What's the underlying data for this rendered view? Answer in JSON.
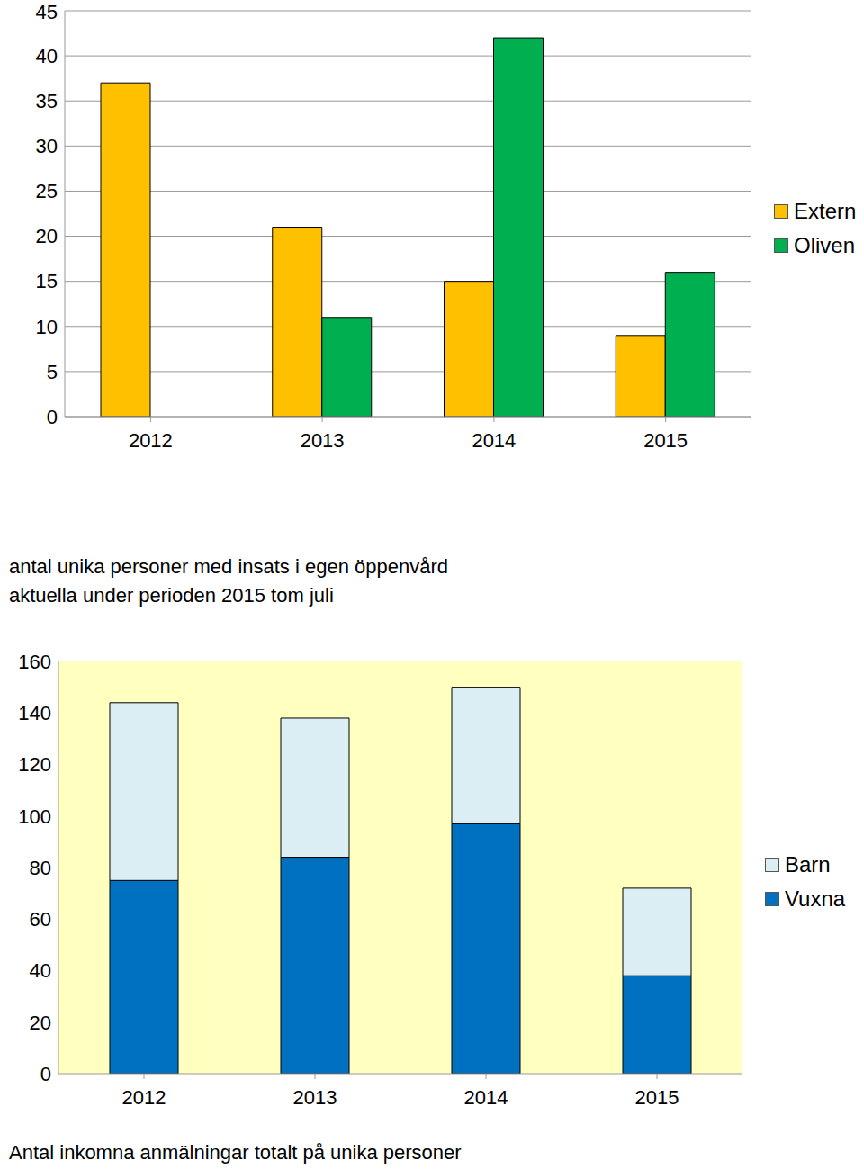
{
  "chart_data": [
    {
      "type": "bar",
      "categories": [
        "2012",
        "2013",
        "2014",
        "2015"
      ],
      "series": [
        {
          "name": "Extern",
          "color": "#FFC000",
          "values": [
            37,
            21,
            15,
            9
          ]
        },
        {
          "name": "Oliven",
          "color": "#00B050",
          "values": [
            null,
            11,
            42,
            16
          ]
        }
      ],
      "ylim": [
        0,
        45
      ],
      "yticks": [
        0,
        5,
        10,
        15,
        20,
        25,
        30,
        35,
        40,
        45
      ],
      "grid": true,
      "legend": "right"
    },
    {
      "type": "bar",
      "title": "antal unika personer med insats i egen öppenvård",
      "subtitle": "aktuella under perioden 2015 tom juli",
      "annotations": [
        "Antal inkomna anmälningar totalt på unika personer"
      ],
      "categories": [
        "2012",
        "2013",
        "2014",
        "2015"
      ],
      "series": [
        {
          "name": "Vuxna",
          "color": "#0070C0",
          "values": [
            75,
            84,
            97,
            38
          ]
        },
        {
          "name": "Barn",
          "color": "#DAEEF3",
          "values": [
            69,
            54,
            53,
            34
          ]
        }
      ],
      "stacked": true,
      "ylim": [
        0,
        160
      ],
      "yticks": [
        0,
        20,
        40,
        60,
        80,
        100,
        120,
        140,
        160
      ],
      "grid": false,
      "legend": "right"
    }
  ]
}
